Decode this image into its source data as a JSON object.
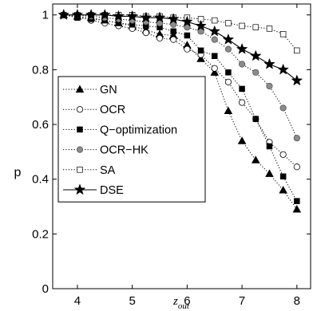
{
  "chart_data": {
    "type": "line",
    "title": "",
    "xlabel": "z",
    "xlabel_sub": "out",
    "ylabel": "p",
    "xlim": [
      3.55,
      8.25
    ],
    "ylim": [
      0,
      1.04
    ],
    "x_ticks": [
      4,
      5,
      6,
      7,
      8
    ],
    "y_ticks": [
      0,
      0.2,
      0.4,
      0.6,
      0.8,
      1
    ],
    "y_tick_labels": [
      "0",
      "0.2",
      "0.4",
      "0.6",
      "0.8",
      "1"
    ],
    "grid": false,
    "legend_placement": "left",
    "x": [
      3.75,
      4.0,
      4.25,
      4.5,
      4.75,
      5.0,
      5.25,
      5.5,
      5.75,
      6.0,
      6.25,
      6.5,
      6.75,
      7.0,
      7.25,
      7.5,
      7.75,
      8.0
    ],
    "series": [
      {
        "name": "GN",
        "marker": "triangle",
        "fill": "#000000",
        "line": "dotted",
        "values": [
          1.0,
          0.995,
          0.99,
          0.98,
          0.97,
          0.96,
          0.945,
          0.93,
          0.925,
          0.89,
          0.84,
          0.79,
          0.65,
          0.54,
          0.47,
          0.42,
          0.36,
          0.29
        ]
      },
      {
        "name": "OCR",
        "marker": "circle",
        "fill": "#ffffff",
        "line": "dotted",
        "values": [
          1.0,
          0.995,
          0.98,
          0.97,
          0.96,
          0.95,
          0.935,
          0.915,
          0.91,
          0.875,
          0.855,
          0.805,
          0.755,
          0.68,
          0.62,
          0.535,
          0.49,
          0.445
        ]
      },
      {
        "name": "Q−optimization",
        "marker": "square",
        "fill": "#000000",
        "line": "dotted",
        "values": [
          1.0,
          0.99,
          0.985,
          0.98,
          0.97,
          0.965,
          0.96,
          0.955,
          0.94,
          0.925,
          0.87,
          0.85,
          0.79,
          0.73,
          0.62,
          0.52,
          0.41,
          0.32
        ]
      },
      {
        "name": "OCR−HK",
        "marker": "circle",
        "fill": "#8c8c8c",
        "line": "dotted",
        "values": [
          1.0,
          1.0,
          0.995,
          0.99,
          0.985,
          0.98,
          0.975,
          0.97,
          0.965,
          0.955,
          0.94,
          0.91,
          0.875,
          0.82,
          0.79,
          0.74,
          0.66,
          0.55
        ]
      },
      {
        "name": "SA",
        "marker": "square",
        "fill": "#ffffff",
        "line": "dotted",
        "values": [
          1.0,
          1.0,
          1.0,
          1.0,
          1.0,
          1.0,
          0.995,
          0.995,
          0.99,
          0.99,
          0.985,
          0.98,
          0.97,
          0.96,
          0.955,
          0.95,
          0.93,
          0.87
        ]
      },
      {
        "name": "DSE",
        "marker": "star",
        "fill": "#000000",
        "line": "solid",
        "values": [
          1.0,
          1.0,
          1.0,
          1.0,
          0.995,
          0.995,
          0.99,
          0.99,
          0.985,
          0.975,
          0.96,
          0.94,
          0.91,
          0.875,
          0.85,
          0.82,
          0.8,
          0.76
        ]
      }
    ]
  }
}
